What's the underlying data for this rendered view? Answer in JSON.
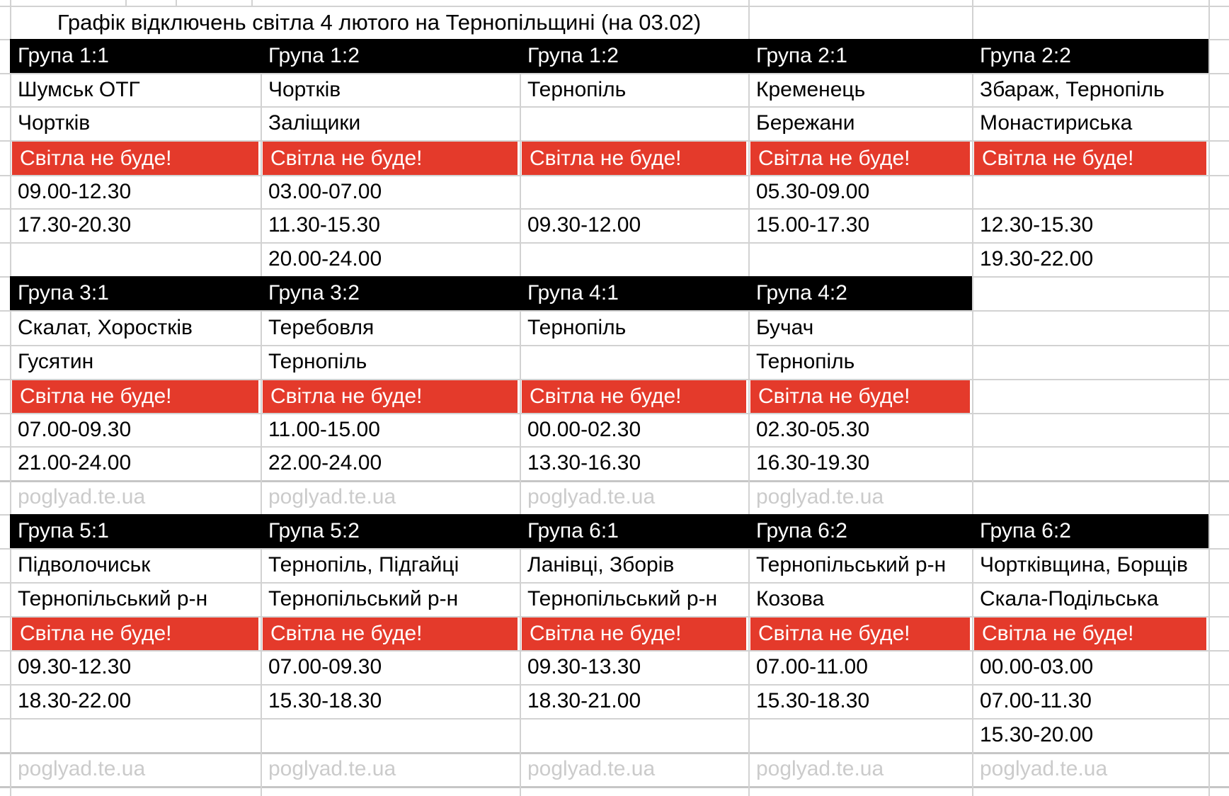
{
  "page": {
    "title": "Графік відключень світла 4 лютого на Тернопільщині (на 03.02)"
  },
  "outage_label": "Світла не буде!",
  "watermark_label": "poglyad.te.ua",
  "colors": {
    "header_bg": "#000000",
    "header_text": "#ffffff",
    "outage_bg": "#e43a2b",
    "outage_text": "#ffffff",
    "cell_text": "#000000",
    "watermark_text": "#cbcbcb",
    "gridline": "#d2d2d2",
    "background": "#ffffff"
  },
  "sections": [
    {
      "groups": [
        "Група 1:1",
        "Група 1:2",
        "Група 1:2",
        "Група 2:1",
        "Група 2:2"
      ],
      "areas1": [
        "Шумськ ОТГ",
        "Чортків",
        "Тернопіль",
        "Кременець",
        "Збараж, Тернопіль"
      ],
      "areas2": [
        "Чортків",
        "Заліщики",
        "",
        "Бережани",
        "Монастириська"
      ],
      "outage": [
        "Світла не буде!",
        "Світла не буде!",
        "Світла не буде!",
        "Світла не буде!",
        "Світла не буде!"
      ],
      "times": [
        [
          "09.00-12.30",
          "03.00-07.00",
          "",
          "05.30-09.00",
          ""
        ],
        [
          "17.30-20.30",
          "11.30-15.30",
          "09.30-12.00",
          "15.00-17.30",
          "12.30-15.30"
        ],
        [
          "",
          "20.00-24.00",
          "",
          "",
          "19.30-22.00"
        ]
      ]
    },
    {
      "groups": [
        "Група 3:1",
        "Група 3:2",
        "Група 4:1",
        "Група 4:2"
      ],
      "areas1": [
        "Скалат, Хоростків",
        "Теребовля",
        "Тернопіль",
        "Бучач"
      ],
      "areas2": [
        "Гусятин",
        "Тернопіль",
        "",
        "Тернопіль"
      ],
      "outage": [
        "Світла не буде!",
        "Світла не буде!",
        "Світла не буде!",
        "Світла не буде!"
      ],
      "times": [
        [
          "07.00-09.30",
          "11.00-15.00",
          "00.00-02.30",
          "02.30-05.30"
        ],
        [
          "21.00-24.00",
          "22.00-24.00",
          "13.30-16.30",
          "16.30-19.30"
        ]
      ],
      "watermarks": [
        "poglyad.te.ua",
        "poglyad.te.ua",
        "poglyad.te.ua",
        "poglyad.te.ua"
      ]
    },
    {
      "groups": [
        "Група 5:1",
        "Група 5:2",
        "Група 6:1",
        "Група 6:2",
        "Група 6:2"
      ],
      "areas1": [
        "Підволочиськ",
        "Тернопіль, Підгайці",
        "Ланівці, Зборів",
        "Тернопільський р-н",
        "Чортківщина, Борщів"
      ],
      "areas2": [
        "Тернопільський р-н",
        "Тернопільський р-н",
        "Тернопільський р-н",
        "Козова",
        "Скала-Подільська"
      ],
      "outage": [
        "Світла не буде!",
        "Світла не буде!",
        "Світла не буде!",
        "Світла не буде!",
        "Світла не буде!"
      ],
      "times": [
        [
          "09.30-12.30",
          "07.00-09.30",
          "09.30-13.30",
          "07.00-11.00",
          "00.00-03.00"
        ],
        [
          "18.30-22.00",
          "15.30-18.30",
          "18.30-21.00",
          "15.30-18.30",
          "07.00-11.30"
        ],
        [
          "",
          "",
          "",
          "",
          "15.30-20.00"
        ]
      ],
      "watermarks": [
        "poglyad.te.ua",
        "poglyad.te.ua",
        "poglyad.te.ua",
        "poglyad.te.ua",
        "poglyad.te.ua"
      ]
    }
  ]
}
